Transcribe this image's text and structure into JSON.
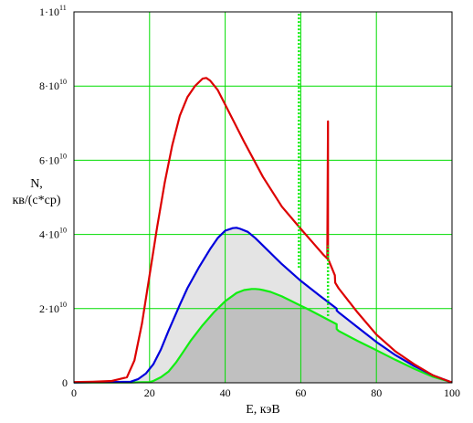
{
  "chart_data": {
    "type": "line",
    "xlabel": "E, кэВ",
    "ylabel_line1": "N,",
    "ylabel_line2": "кв/(с*ср)",
    "xlim": [
      0,
      100
    ],
    "ylim": [
      0,
      100000000000.0
    ],
    "grid": true,
    "x_ticks": [
      {
        "value": 0,
        "label": "0"
      },
      {
        "value": 20,
        "label": "20"
      },
      {
        "value": 40,
        "label": "40"
      },
      {
        "value": 60,
        "label": "60"
      },
      {
        "value": 80,
        "label": "80"
      },
      {
        "value": 100,
        "label": "100"
      }
    ],
    "y_ticks": [
      {
        "value": 0,
        "mant": "0",
        "exp": ""
      },
      {
        "value": 20000000000.0,
        "mant": "2·10",
        "exp": "10"
      },
      {
        "value": 40000000000.0,
        "mant": "4·10",
        "exp": "10"
      },
      {
        "value": 60000000000.0,
        "mant": "6·10",
        "exp": "10"
      },
      {
        "value": 80000000000.0,
        "mant": "8·10",
        "exp": "10"
      },
      {
        "value": 100000000000.0,
        "mant": "1·10",
        "exp": "11"
      }
    ],
    "colors": {
      "grid": "#00dd00",
      "red": "#dd0000",
      "blue": "#0000dd",
      "green": "#11ee11",
      "fill_light": "#e4e4e4",
      "fill_dark": "#c0c0c0"
    },
    "series": [
      {
        "color": "red",
        "x": [
          0,
          5,
          10,
          14,
          16,
          18,
          20,
          22,
          24,
          26,
          28,
          30,
          32,
          34,
          35,
          36,
          38,
          40,
          45,
          50,
          55,
          60,
          63,
          66,
          67,
          67.2,
          67.2,
          67.2,
          68,
          69,
          69.1,
          70,
          75,
          80,
          85,
          90,
          95,
          100
        ],
        "y": [
          200000000.0,
          300000000.0,
          500000000.0,
          1500000000.0,
          6000000000.0,
          16000000000.0,
          29000000000.0,
          42000000000.0,
          54000000000.0,
          64000000000.0,
          72000000000.0,
          77000000000.0,
          80000000000.0,
          82000000000.0,
          82200000000.0,
          81500000000.0,
          79000000000.0,
          75000000000.0,
          65000000000.0,
          55500000000.0,
          47500000000.0,
          41500000000.0,
          38000000000.0,
          34500000000.0,
          33500000000.0,
          70500000000.0,
          33500000000.0,
          33500000000.0,
          31500000000.0,
          29000000000.0,
          27000000000.0,
          25500000000.0,
          19000000000.0,
          13000000000.0,
          8500000000.0,
          5000000000.0,
          2000000000.0,
          100000000.0
        ]
      },
      {
        "color": "blue",
        "x": [
          0,
          10,
          15,
          17,
          19,
          21,
          23,
          25,
          28,
          30,
          33,
          36,
          38,
          40,
          42,
          43,
          44,
          46,
          48,
          50,
          55,
          60,
          65,
          69.5,
          69.5,
          70,
          75,
          80,
          85,
          90,
          95,
          100
        ],
        "y": [
          100000000.0,
          200000000.0,
          300000000.0,
          1000000000.0,
          2500000000.0,
          5000000000.0,
          9000000000.0,
          14000000000.0,
          21000000000.0,
          25500000000.0,
          31000000000.0,
          36000000000.0,
          39000000000.0,
          41000000000.0,
          41700000000.0,
          41800000000.0,
          41500000000.0,
          40700000000.0,
          39000000000.0,
          37000000000.0,
          32000000000.0,
          27500000000.0,
          23500000000.0,
          20000000000.0,
          19500000000.0,
          19000000000.0,
          15000000000.0,
          11000000000.0,
          7500000000.0,
          4500000000.0,
          2000000000.0,
          100000000.0
        ]
      },
      {
        "color": "green",
        "x": [
          0,
          15,
          20,
          21,
          23,
          25,
          27,
          29,
          31,
          34,
          37,
          40,
          43,
          45,
          47,
          48,
          49,
          50,
          52,
          55,
          58,
          60,
          62,
          65,
          69.5,
          69.5,
          70,
          75,
          80,
          85,
          90,
          95,
          100
        ],
        "y": [
          100000000.0,
          100000000.0,
          200000000.0,
          500000000.0,
          1500000000.0,
          3000000000.0,
          5500000000.0,
          8500000000.0,
          11500000000.0,
          15500000000.0,
          19000000000.0,
          22000000000.0,
          24200000000.0,
          25000000000.0,
          25300000000.0,
          25300000000.0,
          25200000000.0,
          25000000000.0,
          24500000000.0,
          23300000000.0,
          21800000000.0,
          20800000000.0,
          19800000000.0,
          18200000000.0,
          15800000000.0,
          14500000000.0,
          14000000000.0,
          11300000000.0,
          8800000000.0,
          6200000000.0,
          3800000000.0,
          1600000000.0,
          100000000.0
        ]
      }
    ],
    "spikes": [
      {
        "color": "green",
        "x": 59.5,
        "ymin": 31000000000.0,
        "ymax": 100000000000.0
      },
      {
        "color": "green",
        "x": 67.2,
        "ymin": 18000000000.0,
        "ymax": 37000000000.0
      }
    ]
  }
}
